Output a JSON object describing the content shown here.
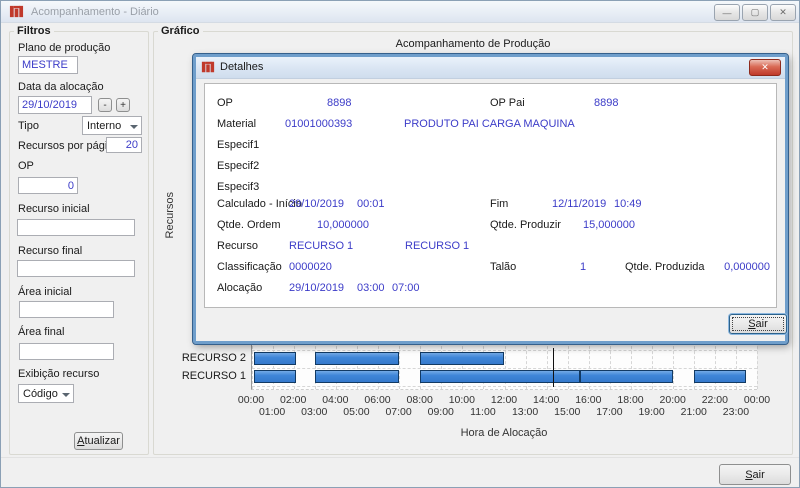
{
  "window": {
    "title": "Acompanhamento - Diário",
    "controls": {
      "minimize": "—",
      "maximize": "▢",
      "close": "✕"
    }
  },
  "filtros": {
    "title": "Filtros",
    "plano_label": "Plano de produção",
    "plano_value": "MESTRE",
    "data_label": "Data da alocação",
    "data_value": "29/10/2019",
    "minus_label": "-",
    "plus_label": "+",
    "tipo_label": "Tipo",
    "tipo_value": "Interno",
    "recursos_pagina_label": "Recursos por página",
    "recursos_pagina_value": "20",
    "op_label": "OP",
    "op_value": "0",
    "recurso_inicial_label": "Recurso inicial",
    "recurso_inicial_value": "",
    "recurso_final_label": "Recurso final",
    "recurso_final_value": "",
    "area_inicial_label": "Área inicial",
    "area_inicial_value": "",
    "area_final_label": "Área final",
    "area_final_value": "",
    "exibicao_label": "Exibição recurso",
    "exibicao_value": "Código",
    "atualizar_label": "Atualizar"
  },
  "grafico": {
    "box_title": "Gráfico"
  },
  "detalhes": {
    "title": "Detalhes",
    "close": "✕",
    "op_label": "OP",
    "op_value": "8898",
    "op_pai_label": "OP Pai",
    "op_pai_value": "8898",
    "material_label": "Material",
    "material_code": "01001000393",
    "material_desc": "PRODUTO PAI CARGA MAQUINA",
    "especif1_label": "Especif1",
    "especif2_label": "Especif2",
    "especif3_label": "Especif3",
    "calculado_label": "Calculado - Início",
    "calculado_date": "29/10/2019",
    "calculado_time": "00:01",
    "fim_label": "Fim",
    "fim_date": "12/11/2019",
    "fim_time": "10:49",
    "qtde_ordem_label": "Qtde. Ordem",
    "qtde_ordem_value": "10,000000",
    "qtde_produzir_label": "Qtde. Produzir",
    "qtde_produzir_value": "15,000000",
    "recurso_label": "Recurso",
    "recurso_code": "RECURSO 1",
    "recurso_desc": "RECURSO 1",
    "classificacao_label": "Classificação",
    "classificacao_value": "0000020",
    "talao_label": "Talão",
    "talao_value": "1",
    "qtde_produzida_label": "Qtde. Produzida",
    "qtde_produzida_value": "0,000000",
    "alocacao_label": "Alocação",
    "alocacao_date": "29/10/2019",
    "alocacao_inicio": "03:00",
    "alocacao_fim": "07:00",
    "sair_label": "Sair"
  },
  "footer": {
    "sair_label": "Sair"
  },
  "colors": {
    "value_text": "#3c3cc8",
    "bar_fill": "#3f86d8",
    "bar_border": "#123a63",
    "logo_red": "#c0392b"
  },
  "chart_data": {
    "type": "gantt",
    "title": "Acompanhamento de Produção",
    "xlabel": "Hora de Alocação",
    "ylabel": "Recursos",
    "x_range_hours": [
      0,
      24
    ],
    "x_ticks": [
      "00:00",
      "01:00",
      "02:00",
      "03:00",
      "04:00",
      "05:00",
      "06:00",
      "07:00",
      "08:00",
      "09:00",
      "10:00",
      "11:00",
      "12:00",
      "13:00",
      "14:00",
      "15:00",
      "16:00",
      "17:00",
      "18:00",
      "19:00",
      "20:00",
      "21:00",
      "22:00",
      "23:00",
      "00:00"
    ],
    "grid": "dashed-hourly",
    "rows": [
      {
        "name": "RECURSO 2",
        "segments_hours": [
          [
            0.1,
            2.1
          ],
          [
            3.0,
            7.0
          ],
          [
            8.0,
            12.0
          ]
        ]
      },
      {
        "name": "RECURSO 1",
        "segments_hours": [
          [
            0.1,
            2.1
          ],
          [
            3.0,
            7.0
          ],
          [
            8.0,
            15.6
          ],
          [
            15.6,
            20.0
          ],
          [
            21.0,
            23.5
          ]
        ]
      }
    ],
    "marker_hour": 14.3
  }
}
